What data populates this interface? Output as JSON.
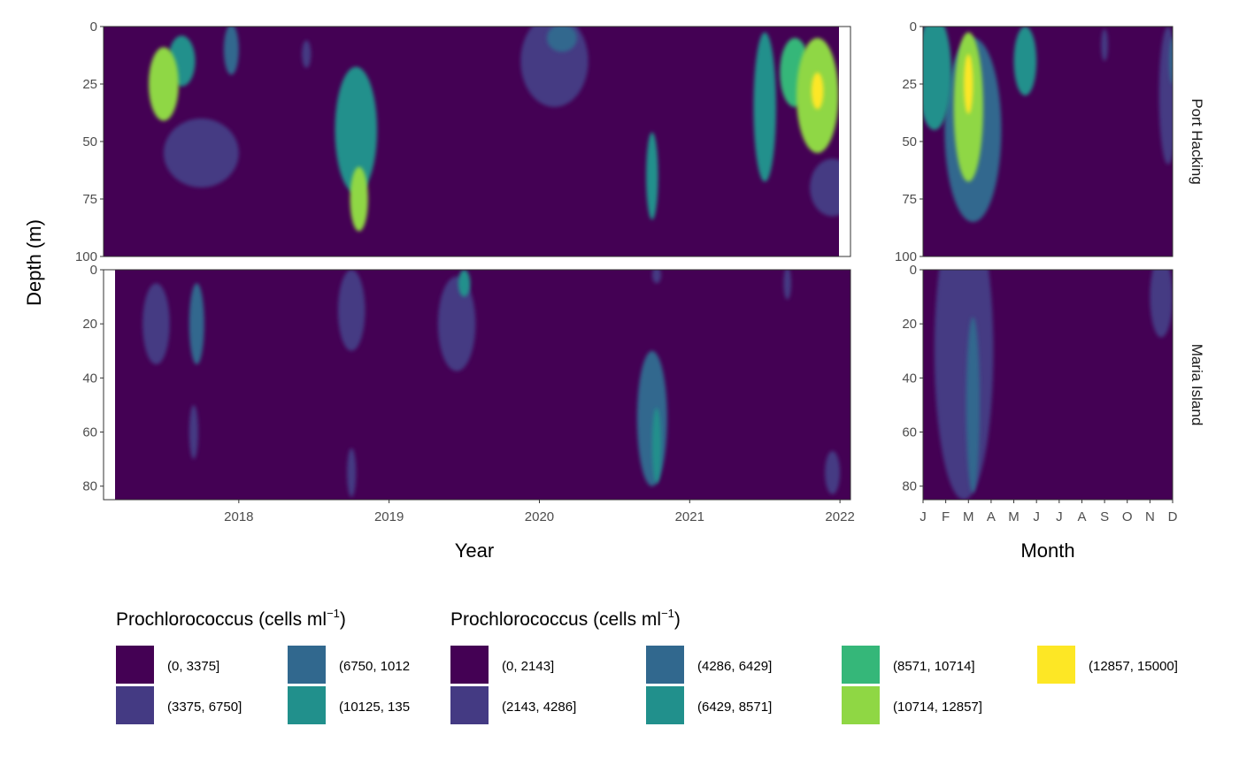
{
  "chart_data": {
    "type": "heatmap",
    "ylabel": "Depth (m)",
    "panels": {
      "timeseries": {
        "xlabel": "Year",
        "x_ticks": [
          "2018",
          "2019",
          "2020",
          "2021",
          "2022"
        ],
        "xlim": [
          2017.1,
          2022.07
        ]
      },
      "climatology": {
        "xlabel": "Month",
        "x_ticks": [
          "J",
          "F",
          "M",
          "A",
          "M",
          "J",
          "J",
          "A",
          "S",
          "O",
          "N",
          "D"
        ],
        "xlim": [
          1,
          12
        ]
      }
    },
    "stations": [
      {
        "name": "Port Hacking",
        "y_ticks": [
          "0",
          "25",
          "50",
          "75",
          "100"
        ],
        "ylim": [
          0,
          100
        ],
        "timeseries_hotspots": [
          {
            "year": 2017.5,
            "depth": 25,
            "level": 5,
            "width": 0.2,
            "height": 32
          },
          {
            "year": 2017.62,
            "depth": 15,
            "level": 3,
            "width": 0.18,
            "height": 22
          },
          {
            "year": 2017.75,
            "depth": 55,
            "level": 1,
            "width": 0.5,
            "height": 30
          },
          {
            "year": 2017.95,
            "depth": 10,
            "level": 2,
            "width": 0.1,
            "height": 22
          },
          {
            "year": 2018.45,
            "depth": 12,
            "level": 1,
            "width": 0.06,
            "height": 12
          },
          {
            "year": 2018.78,
            "depth": 45,
            "level": 3,
            "width": 0.28,
            "height": 55
          },
          {
            "year": 2018.8,
            "depth": 75,
            "level": 5,
            "width": 0.12,
            "height": 28
          },
          {
            "year": 2020.1,
            "depth": 15,
            "level": 1,
            "width": 0.45,
            "height": 40
          },
          {
            "year": 2020.15,
            "depth": 5,
            "level": 2,
            "width": 0.2,
            "height": 12
          },
          {
            "year": 2020.75,
            "depth": 65,
            "level": 3,
            "width": 0.08,
            "height": 38
          },
          {
            "year": 2021.5,
            "depth": 35,
            "level": 3,
            "width": 0.15,
            "height": 65
          },
          {
            "year": 2021.7,
            "depth": 20,
            "level": 4,
            "width": 0.2,
            "height": 30
          },
          {
            "year": 2021.85,
            "depth": 30,
            "level": 5,
            "width": 0.28,
            "height": 50
          },
          {
            "year": 2021.85,
            "depth": 28,
            "level": 6,
            "width": 0.08,
            "height": 16
          },
          {
            "year": 2021.95,
            "depth": 70,
            "level": 1,
            "width": 0.3,
            "height": 25
          }
        ],
        "climatology_hotspots": [
          {
            "month": 3,
            "depth": 35,
            "level": 5,
            "width": 1.3,
            "height": 65
          },
          {
            "month": 3,
            "depth": 25,
            "level": 6,
            "width": 0.4,
            "height": 26
          },
          {
            "month": 3.2,
            "depth": 45,
            "level": 2,
            "width": 2.5,
            "height": 80
          },
          {
            "month": 1.5,
            "depth": 20,
            "level": 3,
            "width": 1.5,
            "height": 50
          },
          {
            "month": 5.5,
            "depth": 15,
            "level": 3,
            "width": 1.0,
            "height": 30
          },
          {
            "month": 9,
            "depth": 8,
            "level": 1,
            "width": 0.3,
            "height": 14
          },
          {
            "month": 11.8,
            "depth": 30,
            "level": 1,
            "width": 0.8,
            "height": 60
          },
          {
            "month": 12,
            "depth": 15,
            "level": 2,
            "width": 0.3,
            "height": 20
          }
        ]
      },
      {
        "name": "Maria Island",
        "y_ticks": [
          "0",
          "20",
          "40",
          "60",
          "80"
        ],
        "ylim": [
          0,
          85
        ],
        "timeseries_hotspots": [
          {
            "year": 2017.45,
            "depth": 20,
            "level": 1,
            "width": 0.18,
            "height": 30
          },
          {
            "year": 2017.72,
            "depth": 20,
            "level": 2,
            "width": 0.1,
            "height": 30
          },
          {
            "year": 2017.7,
            "depth": 60,
            "level": 1,
            "width": 0.06,
            "height": 20
          },
          {
            "year": 2018.75,
            "depth": 15,
            "level": 1,
            "width": 0.18,
            "height": 30
          },
          {
            "year": 2018.75,
            "depth": 75,
            "level": 1,
            "width": 0.06,
            "height": 18
          },
          {
            "year": 2019.45,
            "depth": 20,
            "level": 1,
            "width": 0.25,
            "height": 35
          },
          {
            "year": 2019.5,
            "depth": 5,
            "level": 3,
            "width": 0.08,
            "height": 10
          },
          {
            "year": 2020.75,
            "depth": 55,
            "level": 2,
            "width": 0.2,
            "height": 50
          },
          {
            "year": 2020.78,
            "depth": 65,
            "level": 3,
            "width": 0.06,
            "height": 28
          },
          {
            "year": 2020.78,
            "depth": 2,
            "level": 1,
            "width": 0.06,
            "height": 6
          },
          {
            "year": 2021.65,
            "depth": 5,
            "level": 1,
            "width": 0.05,
            "height": 12
          },
          {
            "year": 2021.95,
            "depth": 75,
            "level": 1,
            "width": 0.1,
            "height": 16
          }
        ],
        "climatology_hotspots": [
          {
            "month": 2.8,
            "depth": 30,
            "level": 1,
            "width": 2.6,
            "height": 110
          },
          {
            "month": 3.2,
            "depth": 50,
            "level": 2,
            "width": 0.6,
            "height": 65
          },
          {
            "month": 11.5,
            "depth": 10,
            "level": 1,
            "width": 1.0,
            "height": 30
          }
        ]
      }
    ],
    "legends": [
      {
        "title_main": "Prochlorococcus (cells ml",
        "title_sup": "−1",
        "title_close": ")",
        "entries": [
          {
            "label": "(0, 3375]",
            "color": "#440154"
          },
          {
            "label": "(3375, 6750]",
            "color": "#443A83"
          },
          {
            "label": "(6750, 1012",
            "color": "#31688E"
          },
          {
            "label": "(10125, 135",
            "color": "#21908C"
          }
        ]
      },
      {
        "title_main": "Prochlorococcus (cells ml",
        "title_sup": "−1",
        "title_close": ")",
        "entries": [
          {
            "label": "(0, 2143]",
            "color": "#440154"
          },
          {
            "label": "(2143, 4286]",
            "color": "#443A83"
          },
          {
            "label": "(4286, 6429]",
            "color": "#31688E"
          },
          {
            "label": "(6429, 8571]",
            "color": "#21908C"
          },
          {
            "label": "(8571, 10714]",
            "color": "#35B779"
          },
          {
            "label": "(10714, 12857]",
            "color": "#8FD744"
          },
          {
            "label": "(12857, 15000]",
            "color": "#FDE725"
          }
        ]
      }
    ],
    "palette": [
      "#440154",
      "#443A83",
      "#31688E",
      "#21908C",
      "#35B779",
      "#8FD744",
      "#FDE725"
    ]
  }
}
